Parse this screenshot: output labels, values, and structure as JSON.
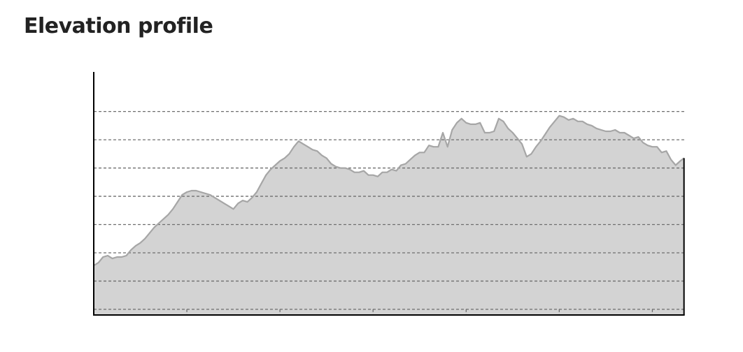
{
  "header": {
    "title": "Elevation profile"
  },
  "chart_data": {
    "type": "area",
    "title": "Elevation profile",
    "xlabel": "",
    "ylabel": "",
    "grid": {
      "horizontal": true,
      "vertical": true,
      "style": "dashed"
    },
    "x_gridlines": [
      1,
      2,
      3,
      4,
      5,
      6
    ],
    "y_gridlines": [
      0.2,
      1.2,
      2.2,
      3.2,
      4.2,
      5.2,
      6.2,
      7.2
    ],
    "xlim": [
      0,
      6.35
    ],
    "ylim": [
      0,
      8.6
    ],
    "x": [
      0,
      0.05,
      0.1,
      0.15,
      0.2,
      0.25,
      0.3,
      0.35,
      0.4,
      0.45,
      0.5,
      0.55,
      0.6,
      0.65,
      0.7,
      0.75,
      0.8,
      0.85,
      0.9,
      0.95,
      1.0,
      1.05,
      1.1,
      1.15,
      1.2,
      1.25,
      1.3,
      1.35,
      1.4,
      1.45,
      1.5,
      1.55,
      1.6,
      1.65,
      1.7,
      1.75,
      1.8,
      1.85,
      1.9,
      1.95,
      2.0,
      2.05,
      2.1,
      2.15,
      2.2,
      2.25,
      2.3,
      2.35,
      2.4,
      2.45,
      2.5,
      2.55,
      2.6,
      2.65,
      2.7,
      2.75,
      2.8,
      2.85,
      2.9,
      2.95,
      3.0,
      3.05,
      3.1,
      3.15,
      3.2,
      3.25,
      3.3,
      3.35,
      3.4,
      3.45,
      3.5,
      3.55,
      3.6,
      3.65,
      3.7,
      3.75,
      3.8,
      3.85,
      3.9,
      3.95,
      4.0,
      4.05,
      4.1,
      4.15,
      4.2,
      4.25,
      4.3,
      4.35,
      4.4,
      4.45,
      4.5,
      4.55,
      4.6,
      4.65,
      4.7,
      4.75,
      4.8,
      4.85,
      4.9,
      4.95,
      5.0,
      5.05,
      5.1,
      5.15,
      5.2,
      5.25,
      5.3,
      5.35,
      5.4,
      5.45,
      5.5,
      5.55,
      5.6,
      5.65,
      5.7,
      5.75,
      5.8,
      5.85,
      5.9,
      5.95,
      6.0,
      6.05,
      6.1,
      6.15,
      6.2,
      6.25,
      6.3,
      6.34
    ],
    "series": [
      {
        "values": [
          1.75,
          1.85,
          2.05,
          2.1,
          2.0,
          2.05,
          2.05,
          2.1,
          2.3,
          2.45,
          2.55,
          2.7,
          2.9,
          3.1,
          3.25,
          3.4,
          3.55,
          3.75,
          4.0,
          4.25,
          4.35,
          4.4,
          4.4,
          4.35,
          4.3,
          4.25,
          4.15,
          4.05,
          3.95,
          3.85,
          3.75,
          3.95,
          4.05,
          4.0,
          4.15,
          4.35,
          4.65,
          4.95,
          5.15,
          5.3,
          5.45,
          5.55,
          5.7,
          5.95,
          6.15,
          6.05,
          5.95,
          5.85,
          5.8,
          5.65,
          5.55,
          5.35,
          5.25,
          5.2,
          5.2,
          5.15,
          5.05,
          5.05,
          5.1,
          4.95,
          4.95,
          4.9,
          5.05,
          5.05,
          5.15,
          5.1,
          5.3,
          5.35,
          5.5,
          5.65,
          5.75,
          5.75,
          6.0,
          5.95,
          5.95,
          6.45,
          5.95,
          6.55,
          6.8,
          6.95,
          6.8,
          6.75,
          6.75,
          6.8,
          6.45,
          6.45,
          6.5,
          6.95,
          6.85,
          6.6,
          6.45,
          6.25,
          6.05,
          5.6,
          5.7,
          5.95,
          6.15,
          6.4,
          6.65,
          6.85,
          7.05,
          7.0,
          6.9,
          6.95,
          6.85,
          6.85,
          6.75,
          6.7,
          6.6,
          6.55,
          6.5,
          6.5,
          6.55,
          6.45,
          6.45,
          6.35,
          6.25,
          6.3,
          6.1,
          6.0,
          5.95,
          5.95,
          5.75,
          5.8,
          5.5,
          5.3,
          5.45,
          5.55
        ],
        "color": "#d3d3d3",
        "line_color": "#a6a6a6"
      }
    ]
  }
}
